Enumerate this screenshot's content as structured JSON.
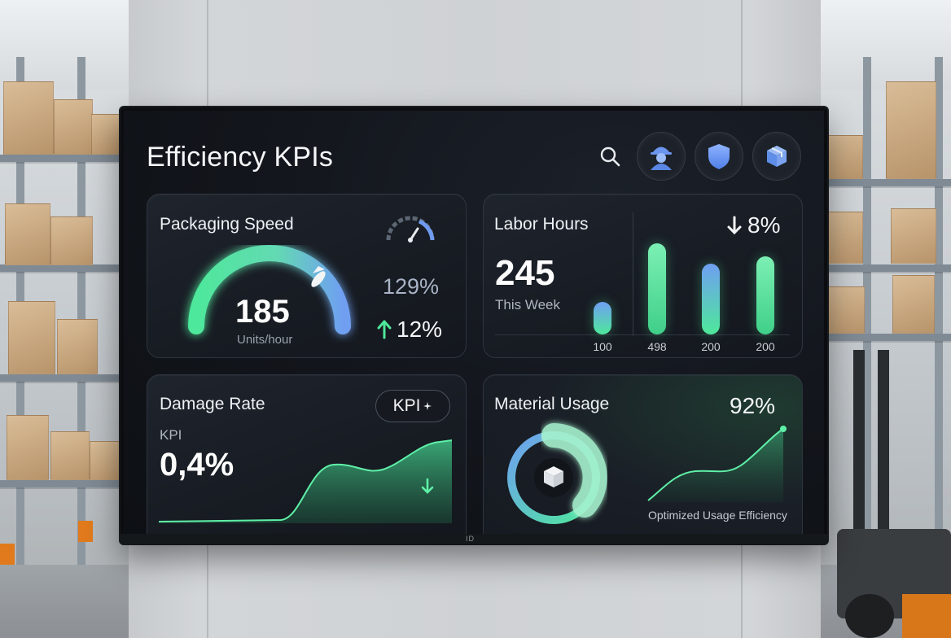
{
  "header": {
    "title": "Efficiency KPIs"
  },
  "icons": {
    "search": "search-icon",
    "worker": "worker-avatar-icon",
    "shield": "shield-icon",
    "package": "package-icon"
  },
  "cards": {
    "packaging": {
      "title": "Packaging Speed",
      "value": "185",
      "unit": "Units/hour",
      "secondary_value": "129%",
      "change": "12%",
      "gauge_level": 0.8
    },
    "labor": {
      "title": "Labor Hours",
      "change": "8%",
      "value": "245",
      "period": "This Week",
      "bars": [
        {
          "label": "100",
          "level": 0.36
        },
        {
          "label": "498",
          "level": 1.0
        },
        {
          "label": "200",
          "level": 0.78
        },
        {
          "label": "200",
          "level": 0.86
        }
      ]
    },
    "damage": {
      "title": "Damage Rate",
      "pill": "KPI",
      "kpi_label": "KPI",
      "value": "0,4%"
    },
    "material": {
      "title": "Material Usage",
      "value": "92%",
      "caption": "Optimized Usage Efficiency"
    }
  },
  "colors": {
    "accent_green": "#4ee89b",
    "accent_blue": "#5b8ff0",
    "card_bg": "#1a1e26",
    "screen_bg": "#12151b"
  },
  "tv": {
    "brand": "ID"
  }
}
